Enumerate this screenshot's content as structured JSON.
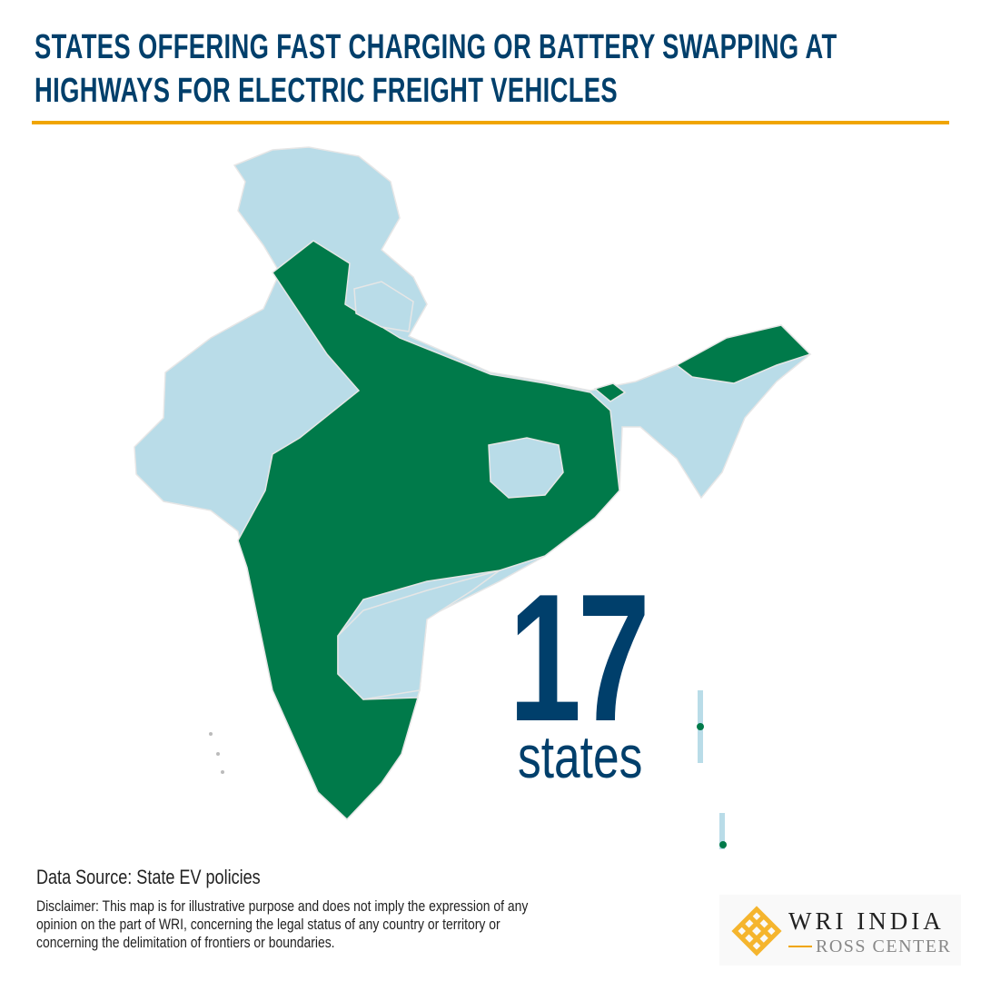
{
  "title": "STATES OFFERING FAST CHARGING OR BATTERY SWAPPING AT HIGHWAYS FOR ELECTRIC FREIGHT VEHICLES",
  "title_lines": [
    "STATES OFFERING FAST CHARGING OR BATTERY SWAPPING AT",
    "HIGHWAYS FOR ELECTRIC FREIGHT VEHICLES"
  ],
  "highlight": {
    "count": "17",
    "unit": "states"
  },
  "source": "Data Source: State EV policies",
  "disclaimer": "Disclaimer: This map is for illustrative purpose and does not imply the expression of any opinion on the part of WRI, concerning the legal status of any country or territory or concerning the delimitation of frontiers or boundaries.",
  "logo": {
    "line1": "WRI INDIA",
    "line2": "ROSS CENTER"
  },
  "colors": {
    "offering": "#007a4a",
    "not_offering": "#b9dce8",
    "title": "#003f6b",
    "accent": "#f0a500"
  }
}
